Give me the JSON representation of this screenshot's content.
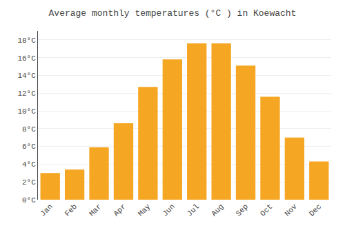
{
  "chart_data": {
    "type": "bar",
    "title": "Average monthly temperatures (°C ) in Koewacht",
    "categories": [
      "Jan",
      "Feb",
      "Mar",
      "Apr",
      "May",
      "Jun",
      "Jul",
      "Aug",
      "Sep",
      "Oct",
      "Nov",
      "Dec"
    ],
    "values": [
      3.0,
      3.4,
      5.9,
      8.6,
      12.7,
      15.8,
      17.6,
      17.6,
      15.1,
      11.6,
      7.0,
      4.3
    ],
    "color": "#F5A623",
    "ylim": [
      0,
      19
    ],
    "yticks": [
      {
        "value": 0,
        "label": "0°C"
      },
      {
        "value": 2,
        "label": "2°C"
      },
      {
        "value": 4,
        "label": "4°C"
      },
      {
        "value": 6,
        "label": "6°C"
      },
      {
        "value": 8,
        "label": "8°C"
      },
      {
        "value": 10,
        "label": "10°C"
      },
      {
        "value": 12,
        "label": "12°C"
      },
      {
        "value": 14,
        "label": "14°C"
      },
      {
        "value": 16,
        "label": "16°C"
      },
      {
        "value": 18,
        "label": "18°C"
      }
    ],
    "grid": true
  }
}
